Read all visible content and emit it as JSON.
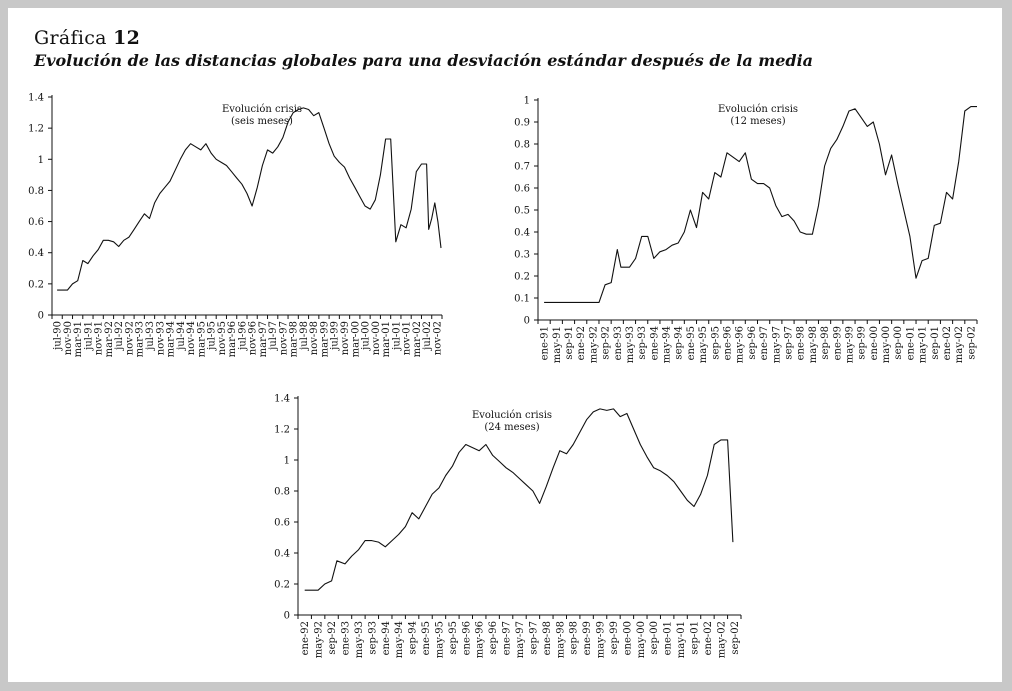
{
  "figure": {
    "heading_prefix": "Gráfica",
    "heading_number": "12",
    "subtitle": "Evolución de las distancias globales para una desviación estándar después de la media"
  },
  "chart_data": [
    {
      "type": "line",
      "annotation": [
        "Evolución crisis",
        "(seis meses)"
      ],
      "ylim": [
        0,
        1.4
      ],
      "yticks": [
        "0",
        "0.2",
        "0.4",
        "0.6",
        "0.8",
        "1",
        "1.2",
        "1.4"
      ],
      "xtick_labels": [
        "jul-90",
        "nov-90",
        "mar-91",
        "jul-91",
        "nov-91",
        "mar-92",
        "jul-92",
        "nov-92",
        "mar-93",
        "jul-93",
        "nov-93",
        "mar-94",
        "jul-94",
        "nov-94",
        "mar-95",
        "jul-95",
        "nov-95",
        "mar-96",
        "jul-96",
        "nov-96",
        "mar-97",
        "jul-97",
        "nov-97",
        "mar-98",
        "jul-98",
        "nov-98",
        "mar-99",
        "jul-99",
        "nov-99",
        "mar-00",
        "jul-00",
        "nov-00",
        "mar-01",
        "jul-01",
        "nov-01",
        "mar-02",
        "jul-02",
        "nov-02"
      ],
      "series": [
        {
          "points": [
            [
              0,
              0.16
            ],
            [
              1,
              0.16
            ],
            [
              1.5,
              0.2
            ],
            [
              2,
              0.22
            ],
            [
              2.5,
              0.35
            ],
            [
              3,
              0.33
            ],
            [
              3.5,
              0.38
            ],
            [
              4,
              0.42
            ],
            [
              4.5,
              0.48
            ],
            [
              5,
              0.48
            ],
            [
              5.5,
              0.47
            ],
            [
              6,
              0.44
            ],
            [
              6.5,
              0.48
            ],
            [
              7,
              0.5
            ],
            [
              7.5,
              0.55
            ],
            [
              8,
              0.6
            ],
            [
              8.5,
              0.65
            ],
            [
              9,
              0.62
            ],
            [
              9.5,
              0.72
            ],
            [
              10,
              0.78
            ],
            [
              10.5,
              0.82
            ],
            [
              11,
              0.86
            ],
            [
              11.5,
              0.93
            ],
            [
              12,
              1.0
            ],
            [
              12.5,
              1.06
            ],
            [
              13,
              1.1
            ],
            [
              13.5,
              1.08
            ],
            [
              14,
              1.06
            ],
            [
              14.5,
              1.1
            ],
            [
              15,
              1.04
            ],
            [
              15.5,
              1.0
            ],
            [
              16,
              0.98
            ],
            [
              16.5,
              0.96
            ],
            [
              17,
              0.92
            ],
            [
              17.5,
              0.88
            ],
            [
              18,
              0.84
            ],
            [
              18.5,
              0.78
            ],
            [
              19,
              0.7
            ],
            [
              19.5,
              0.82
            ],
            [
              20,
              0.96
            ],
            [
              20.5,
              1.06
            ],
            [
              21,
              1.04
            ],
            [
              21.5,
              1.08
            ],
            [
              22,
              1.14
            ],
            [
              22.5,
              1.24
            ],
            [
              23,
              1.3
            ],
            [
              23.5,
              1.32
            ],
            [
              24,
              1.33
            ],
            [
              24.5,
              1.32
            ],
            [
              25,
              1.28
            ],
            [
              25.5,
              1.3
            ],
            [
              26,
              1.2
            ],
            [
              26.5,
              1.1
            ],
            [
              27,
              1.02
            ],
            [
              27.5,
              0.98
            ],
            [
              28,
              0.95
            ],
            [
              28.5,
              0.88
            ],
            [
              29,
              0.82
            ],
            [
              29.5,
              0.76
            ],
            [
              30,
              0.7
            ],
            [
              30.5,
              0.68
            ],
            [
              31,
              0.74
            ],
            [
              31.5,
              0.9
            ],
            [
              32,
              1.13
            ],
            [
              32.5,
              1.13
            ],
            [
              33,
              0.47
            ],
            [
              33.5,
              0.58
            ],
            [
              34,
              0.56
            ],
            [
              34.5,
              0.68
            ],
            [
              35,
              0.92
            ],
            [
              35.5,
              0.97
            ],
            [
              36,
              0.97
            ],
            [
              36.2,
              0.55
            ],
            [
              36.5,
              0.62
            ],
            [
              36.8,
              0.72
            ],
            [
              37.1,
              0.6
            ],
            [
              37.4,
              0.43
            ]
          ]
        }
      ]
    },
    {
      "type": "line",
      "annotation": [
        "Evolución crisis",
        "(12 meses)"
      ],
      "ylim": [
        0,
        1
      ],
      "yticks": [
        "0",
        "0.1",
        "0.2",
        "0.3",
        "0.4",
        "0.5",
        "0.6",
        "0.7",
        "0.8",
        "0.9",
        "1"
      ],
      "xtick_labels": [
        "ene-91",
        "may-91",
        "sep-91",
        "ene-92",
        "may-92",
        "sep-92",
        "ene-93",
        "may-93",
        "sep-93",
        "ene-94",
        "may-94",
        "sep-94",
        "ene-95",
        "may-95",
        "sep-95",
        "ene-96",
        "may-96",
        "sep-96",
        "ene-97",
        "may-97",
        "sep-97",
        "ene-98",
        "may-98",
        "sep-98",
        "ene-99",
        "may-99",
        "sep-99",
        "ene-00",
        "may-00",
        "sep-00",
        "ene-01",
        "may-01",
        "sep-01",
        "ene-02",
        "may-02",
        "sep-02"
      ],
      "series": [
        {
          "points": [
            [
              0,
              0.08
            ],
            [
              4.5,
              0.08
            ],
            [
              5,
              0.16
            ],
            [
              5.5,
              0.17
            ],
            [
              6,
              0.32
            ],
            [
              6.3,
              0.24
            ],
            [
              7,
              0.24
            ],
            [
              7.5,
              0.28
            ],
            [
              8,
              0.38
            ],
            [
              8.5,
              0.38
            ],
            [
              9,
              0.28
            ],
            [
              9.5,
              0.31
            ],
            [
              10,
              0.32
            ],
            [
              10.5,
              0.34
            ],
            [
              11,
              0.35
            ],
            [
              11.5,
              0.4
            ],
            [
              12,
              0.5
            ],
            [
              12.5,
              0.42
            ],
            [
              13,
              0.58
            ],
            [
              13.5,
              0.55
            ],
            [
              14,
              0.67
            ],
            [
              14.5,
              0.65
            ],
            [
              15,
              0.76
            ],
            [
              15.5,
              0.74
            ],
            [
              16,
              0.72
            ],
            [
              16.5,
              0.76
            ],
            [
              17,
              0.64
            ],
            [
              17.5,
              0.62
            ],
            [
              18,
              0.62
            ],
            [
              18.5,
              0.6
            ],
            [
              19,
              0.52
            ],
            [
              19.5,
              0.47
            ],
            [
              20,
              0.48
            ],
            [
              20.5,
              0.45
            ],
            [
              21,
              0.4
            ],
            [
              21.5,
              0.39
            ],
            [
              22,
              0.39
            ],
            [
              22.5,
              0.52
            ],
            [
              23,
              0.7
            ],
            [
              23.5,
              0.78
            ],
            [
              24,
              0.82
            ],
            [
              24.5,
              0.88
            ],
            [
              25,
              0.95
            ],
            [
              25.5,
              0.96
            ],
            [
              26,
              0.92
            ],
            [
              26.5,
              0.88
            ],
            [
              27,
              0.9
            ],
            [
              27.5,
              0.8
            ],
            [
              28,
              0.66
            ],
            [
              28.5,
              0.75
            ],
            [
              29,
              0.62
            ],
            [
              29.5,
              0.5
            ],
            [
              30,
              0.38
            ],
            [
              30.5,
              0.19
            ],
            [
              31,
              0.27
            ],
            [
              31.5,
              0.28
            ],
            [
              32,
              0.43
            ],
            [
              32.5,
              0.44
            ],
            [
              33,
              0.58
            ],
            [
              33.5,
              0.55
            ],
            [
              34,
              0.72
            ],
            [
              34.5,
              0.95
            ],
            [
              35,
              0.97
            ],
            [
              35.5,
              0.97
            ]
          ]
        }
      ]
    },
    {
      "type": "line",
      "annotation": [
        "Evolución crisis",
        "(24 meses)"
      ],
      "ylim": [
        0,
        1.4
      ],
      "yticks": [
        "0",
        "0.2",
        "0.4",
        "0.6",
        "0.8",
        "1",
        "1.2",
        "1.4"
      ],
      "xtick_labels": [
        "ene-92",
        "may-92",
        "sep-92",
        "ene-93",
        "may-93",
        "sep-93",
        "ene-94",
        "may-94",
        "sep-94",
        "ene-95",
        "may-95",
        "sep-95",
        "ene-96",
        "may-96",
        "sep-96",
        "ene-97",
        "may-97",
        "sep-97",
        "ene-98",
        "may-98",
        "sep-98",
        "ene-99",
        "may-99",
        "sep-99",
        "ene-00",
        "may-00",
        "sep-00",
        "ene-01",
        "may-01",
        "sep-01",
        "ene-02",
        "may-02",
        "sep-02"
      ],
      "series": [
        {
          "points": [
            [
              0,
              0.16
            ],
            [
              1,
              0.16
            ],
            [
              1.5,
              0.2
            ],
            [
              2,
              0.22
            ],
            [
              2.4,
              0.35
            ],
            [
              3,
              0.33
            ],
            [
              3.5,
              0.38
            ],
            [
              4,
              0.42
            ],
            [
              4.5,
              0.48
            ],
            [
              5,
              0.48
            ],
            [
              5.5,
              0.47
            ],
            [
              6,
              0.44
            ],
            [
              6.5,
              0.48
            ],
            [
              7,
              0.52
            ],
            [
              7.5,
              0.57
            ],
            [
              8,
              0.66
            ],
            [
              8.5,
              0.62
            ],
            [
              9,
              0.7
            ],
            [
              9.5,
              0.78
            ],
            [
              10,
              0.82
            ],
            [
              10.5,
              0.9
            ],
            [
              11,
              0.96
            ],
            [
              11.5,
              1.05
            ],
            [
              12,
              1.1
            ],
            [
              12.5,
              1.08
            ],
            [
              13,
              1.06
            ],
            [
              13.5,
              1.1
            ],
            [
              14,
              1.03
            ],
            [
              14.5,
              0.99
            ],
            [
              15,
              0.95
            ],
            [
              15.5,
              0.92
            ],
            [
              16,
              0.88
            ],
            [
              16.5,
              0.84
            ],
            [
              17,
              0.8
            ],
            [
              17.5,
              0.72
            ],
            [
              18,
              0.83
            ],
            [
              18.5,
              0.95
            ],
            [
              19,
              1.06
            ],
            [
              19.5,
              1.04
            ],
            [
              20,
              1.1
            ],
            [
              20.5,
              1.18
            ],
            [
              21,
              1.26
            ],
            [
              21.5,
              1.31
            ],
            [
              22,
              1.33
            ],
            [
              22.5,
              1.32
            ],
            [
              23,
              1.33
            ],
            [
              23.5,
              1.28
            ],
            [
              24,
              1.3
            ],
            [
              24.5,
              1.2
            ],
            [
              25,
              1.1
            ],
            [
              25.5,
              1.02
            ],
            [
              26,
              0.95
            ],
            [
              26.5,
              0.93
            ],
            [
              27,
              0.9
            ],
            [
              27.5,
              0.86
            ],
            [
              28,
              0.8
            ],
            [
              28.5,
              0.74
            ],
            [
              29,
              0.7
            ],
            [
              29.5,
              0.78
            ],
            [
              30,
              0.9
            ],
            [
              30.5,
              1.1
            ],
            [
              31,
              1.13
            ],
            [
              31.5,
              1.13
            ],
            [
              31.9,
              0.47
            ]
          ]
        }
      ]
    }
  ]
}
